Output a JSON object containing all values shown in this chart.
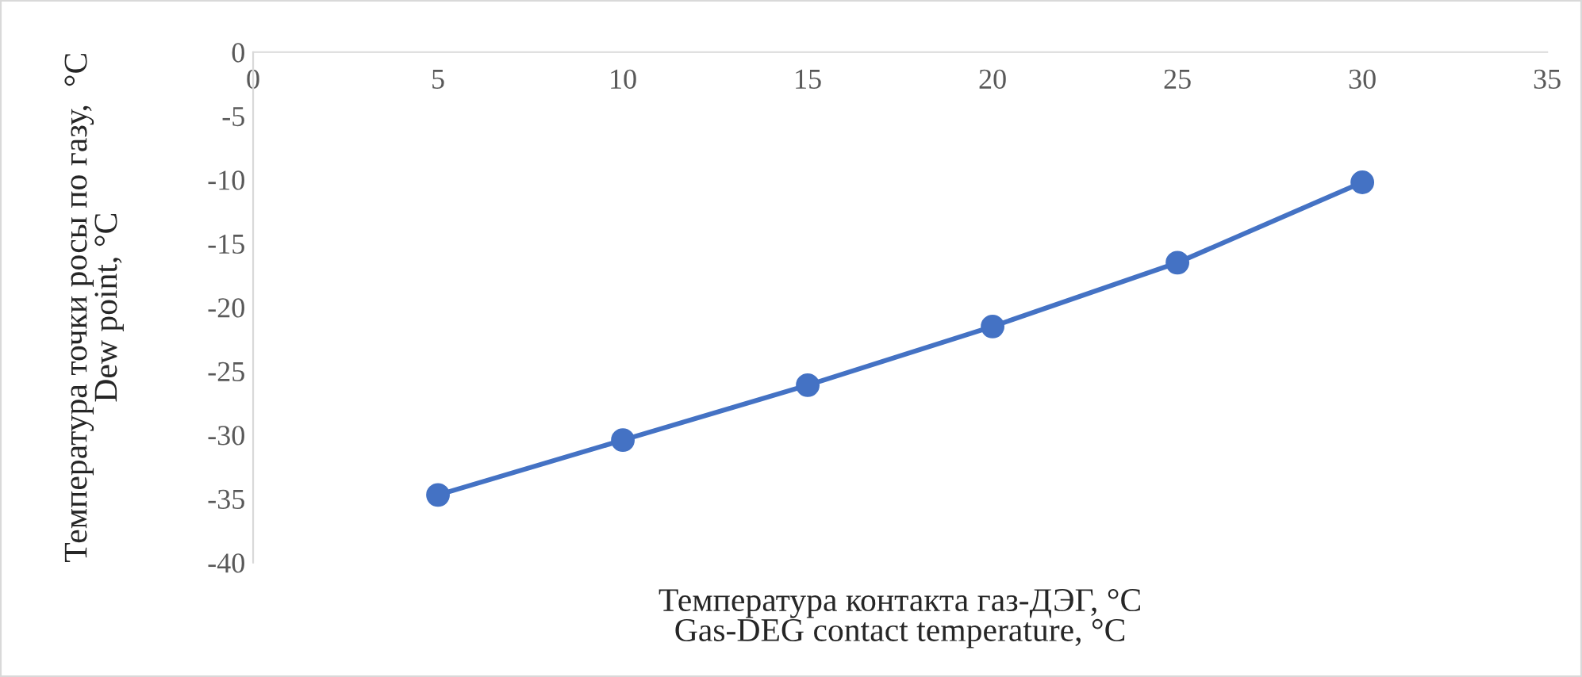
{
  "chart_data": {
    "type": "line",
    "xlabel": "Температура контакта газ-ДЭГ, °C\nGas-DEG contact temperature, °C",
    "ylabel": "Температура точки росы по газу,  °C\nDew point, °C",
    "x": [
      5,
      10,
      15,
      20,
      25,
      30
    ],
    "series": [
      {
        "color": "#4472c4",
        "values": [
          -34.7,
          -30.4,
          -26.1,
          -21.5,
          -16.5,
          -10.2
        ]
      }
    ],
    "xlim": [
      0,
      35
    ],
    "xticks": [
      0,
      5,
      10,
      15,
      20,
      25,
      30,
      35
    ],
    "ylim": [
      -40,
      0
    ],
    "yticks": [
      -40,
      -35,
      -30,
      -25,
      -20,
      -15,
      -10,
      -5,
      0
    ],
    "grid": false,
    "marker": "circle",
    "line_style": "solid"
  }
}
